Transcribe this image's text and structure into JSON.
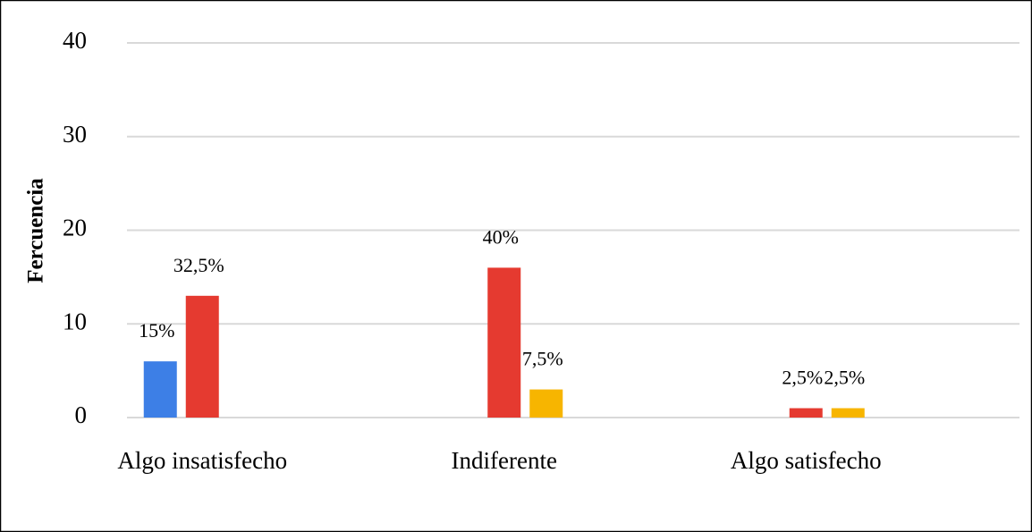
{
  "chart_data": {
    "type": "bar",
    "ylabel": "Fercuencia",
    "categories": [
      "Algo insatisfecho",
      "Indiferente",
      "Algo satisfecho"
    ],
    "series": [
      {
        "color": "#3d7fe6",
        "values": [
          6,
          null,
          null
        ],
        "value_labels": [
          "15%",
          null,
          null
        ]
      },
      {
        "color": "#e53a30",
        "values": [
          13,
          16,
          1
        ],
        "value_labels": [
          "32,5%",
          "40%",
          "2,5%"
        ]
      },
      {
        "color": "#f7b500",
        "values": [
          null,
          3,
          1
        ],
        "value_labels": [
          null,
          "7,5%",
          "2,5%"
        ]
      }
    ],
    "ylim": [
      0,
      40
    ],
    "yticks": [
      0,
      10,
      20,
      30,
      40
    ],
    "grid": true
  }
}
